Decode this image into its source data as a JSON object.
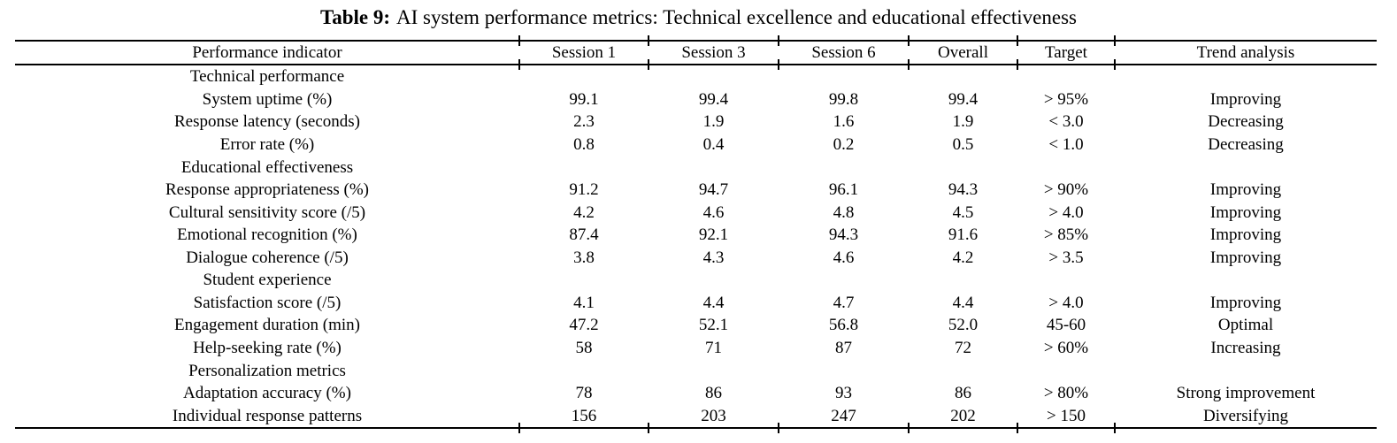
{
  "caption": {
    "label": "Table 9:",
    "text": "AI system performance metrics: Technical excellence and educational effectiveness"
  },
  "table": {
    "columns": [
      "Performance indicator",
      "Session 1",
      "Session 3",
      "Session 6",
      "Overall",
      "Target",
      "Trend analysis"
    ],
    "rows": [
      {
        "section": true,
        "cells": [
          "Technical performance",
          "",
          "",
          "",
          "",
          "",
          ""
        ]
      },
      {
        "section": false,
        "cells": [
          "System uptime (%)",
          "99.1",
          "99.4",
          "99.8",
          "99.4",
          "> 95%",
          "Improving"
        ]
      },
      {
        "section": false,
        "cells": [
          "Response latency (seconds)",
          "2.3",
          "1.9",
          "1.6",
          "1.9",
          "< 3.0",
          "Decreasing"
        ]
      },
      {
        "section": false,
        "cells": [
          "Error rate (%)",
          "0.8",
          "0.4",
          "0.2",
          "0.5",
          "< 1.0",
          "Decreasing"
        ]
      },
      {
        "section": true,
        "cells": [
          "Educational effectiveness",
          "",
          "",
          "",
          "",
          "",
          ""
        ]
      },
      {
        "section": false,
        "cells": [
          "Response appropriateness (%)",
          "91.2",
          "94.7",
          "96.1",
          "94.3",
          "> 90%",
          "Improving"
        ]
      },
      {
        "section": false,
        "cells": [
          "Cultural sensitivity score (/5)",
          "4.2",
          "4.6",
          "4.8",
          "4.5",
          "> 4.0",
          "Improving"
        ]
      },
      {
        "section": false,
        "cells": [
          "Emotional recognition (%)",
          "87.4",
          "92.1",
          "94.3",
          "91.6",
          "> 85%",
          "Improving"
        ]
      },
      {
        "section": false,
        "cells": [
          "Dialogue coherence (/5)",
          "3.8",
          "4.3",
          "4.6",
          "4.2",
          "> 3.5",
          "Improving"
        ]
      },
      {
        "section": true,
        "cells": [
          "Student experience",
          "",
          "",
          "",
          "",
          "",
          ""
        ]
      },
      {
        "section": false,
        "cells": [
          "Satisfaction score (/5)",
          "4.1",
          "4.4",
          "4.7",
          "4.4",
          "> 4.0",
          "Improving"
        ]
      },
      {
        "section": false,
        "cells": [
          "Engagement duration (min)",
          "47.2",
          "52.1",
          "56.8",
          "52.0",
          "45-60",
          "Optimal"
        ]
      },
      {
        "section": false,
        "cells": [
          "Help-seeking rate (%)",
          "58",
          "71",
          "87",
          "72",
          "> 60%",
          "Increasing"
        ]
      },
      {
        "section": true,
        "cells": [
          "Personalization metrics",
          "",
          "",
          "",
          "",
          "",
          ""
        ]
      },
      {
        "section": false,
        "cells": [
          "Adaptation accuracy (%)",
          "78",
          "86",
          "93",
          "86",
          "> 80%",
          "Strong improvement"
        ]
      },
      {
        "section": false,
        "cells": [
          "Individual response patterns",
          "156",
          "203",
          "247",
          "202",
          "> 150",
          "Diversifying"
        ]
      }
    ]
  }
}
